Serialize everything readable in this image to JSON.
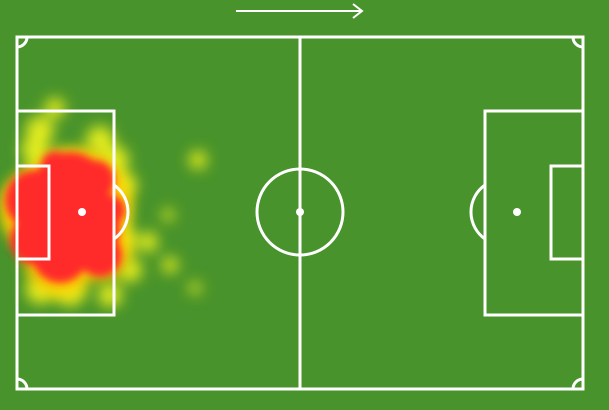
{
  "pitch": {
    "grass_color": "#48932b",
    "line_color": "#ffffff",
    "direction_icon": "arrow-right-icon"
  },
  "heatmap": {
    "colors": {
      "low": "#e8f020",
      "mid": "#ffd000",
      "high": "#ff2a2a"
    }
  }
}
